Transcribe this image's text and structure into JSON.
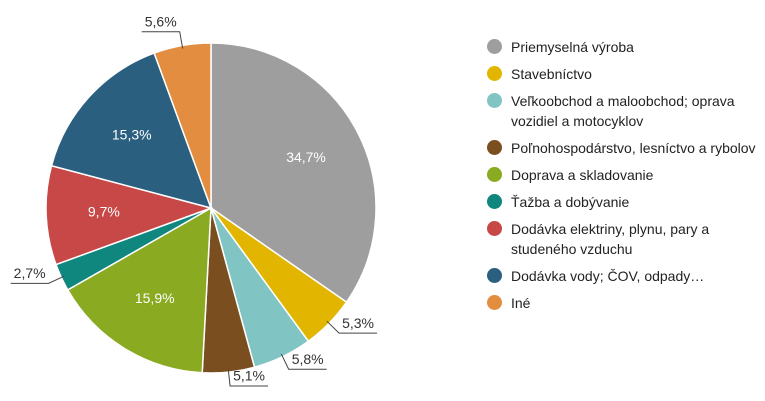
{
  "chart_data": {
    "type": "pie",
    "categories": [
      "Priemyselná výroba",
      "Stavebníctvo",
      "Veľkoobchod a maloobchod; oprava vozidiel a motocyklov",
      "Poľnohospodárstvo, lesníctvo a rybolov",
      "Doprava a skladovanie",
      "Ťažba a dobývanie",
      "Dodávka elektriny, plynu, pary a studeného vzduchu",
      "Dodávka vody; ČOV, odpady…",
      "Iné"
    ],
    "values": [
      34.7,
      5.3,
      5.8,
      5.1,
      15.9,
      2.7,
      9.7,
      15.3,
      5.6
    ],
    "value_labels": [
      "34,7%",
      "5,3%",
      "5,8%",
      "5,1%",
      "15,9%",
      "2,7%",
      "9,7%",
      "15,3%",
      "5,6%"
    ],
    "colors": [
      "#9e9e9e",
      "#e2b600",
      "#80c4c3",
      "#7a4e1f",
      "#8aaa22",
      "#0f877e",
      "#c84848",
      "#2b5f80",
      "#e28d3f"
    ],
    "legend": "right"
  }
}
